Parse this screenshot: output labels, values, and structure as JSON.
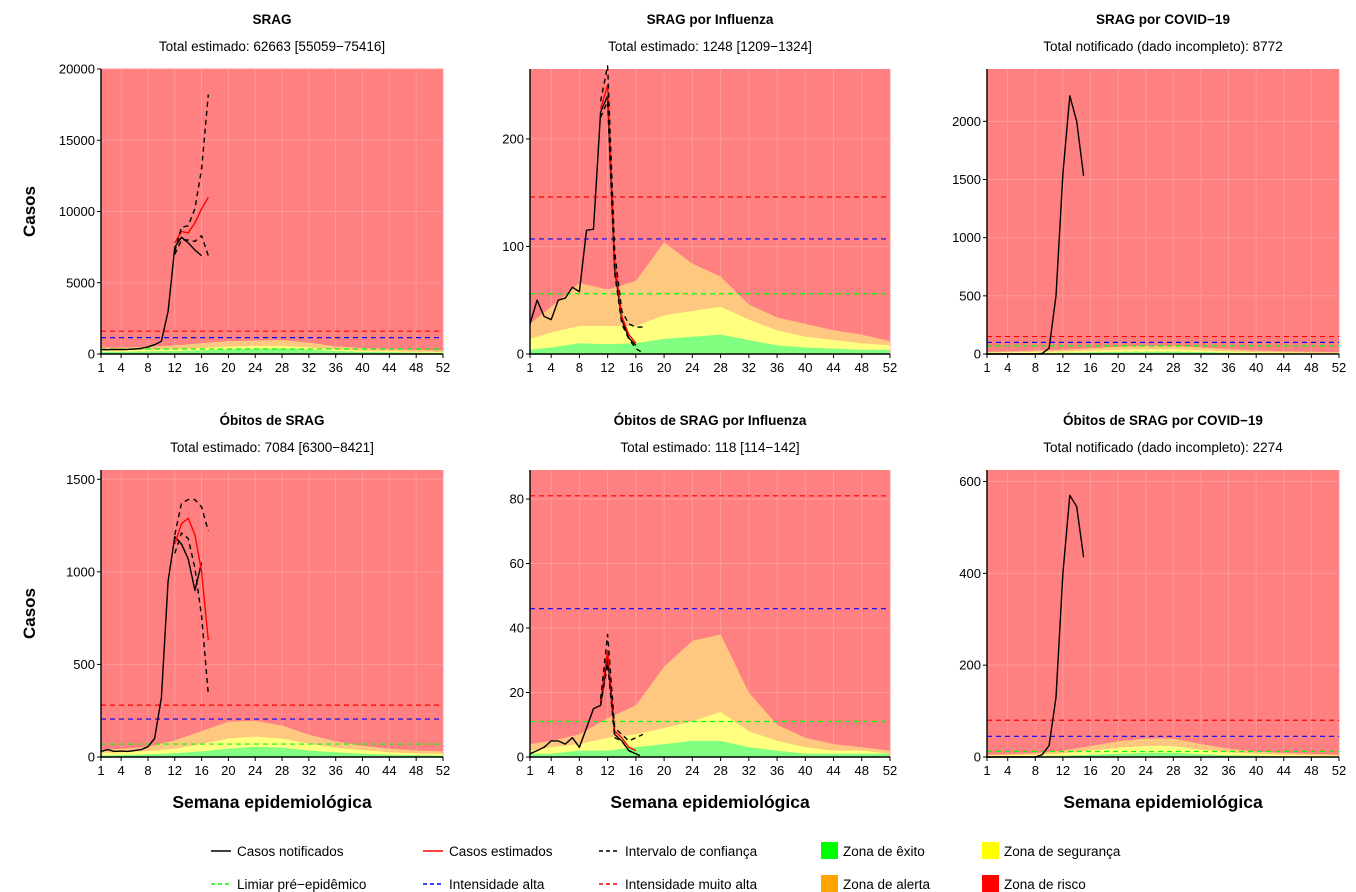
{
  "figure": {
    "x_label": "Semana epidemiológica",
    "y_label": "Casos",
    "colors": {
      "zone_risco": "#ff8080",
      "zone_alerta": "#ffc880",
      "zone_seguranca": "#ffff80",
      "zone_exito": "#80ff80",
      "grid": "#ff9999",
      "casos_notificados": "#000000",
      "casos_estimados": "#ff0000",
      "limiar": "#00ff00",
      "intensidade_alta": "#0000ff",
      "intensidade_muito_alta": "#ff0000"
    },
    "legend": {
      "casos_notificados": "Casos notificados",
      "casos_estimados": "Casos estimados",
      "intervalo_confianca": "Intervalo de confiança",
      "zona_exito": "Zona de êxito",
      "zona_seguranca": "Zona de segurança",
      "limiar": "Limiar pré−epidêmico",
      "intensidade_alta": "Intensidade alta",
      "intensidade_muito_alta": "Intensidade muito alta",
      "zona_alerta": "Zona de alerta",
      "zona_risco": "Zona de risco",
      "colors": {
        "exito": "#00ff00",
        "seguranca": "#ffff00",
        "alerta": "#ffa500",
        "risco": "#ff0000"
      }
    }
  },
  "chart_data": [
    {
      "type": "line",
      "title": "SRAG",
      "subtitle": "Total estimado: 62663 [55059−75416]",
      "ylim": [
        0,
        20000
      ],
      "yticks": [
        0,
        5000,
        10000,
        15000,
        20000
      ],
      "xlim": [
        1,
        52
      ],
      "xticks": [
        1,
        4,
        8,
        12,
        16,
        20,
        24,
        28,
        32,
        36,
        40,
        44,
        48,
        52
      ],
      "thresholds": {
        "limiar": 350,
        "alta": 1150,
        "muito_alta": 1600
      },
      "zones": {
        "weeks": [
          1,
          4,
          8,
          12,
          16,
          20,
          24,
          28,
          32,
          36,
          40,
          44,
          48,
          52
        ],
        "exito": [
          150,
          150,
          180,
          200,
          260,
          320,
          360,
          380,
          300,
          200,
          150,
          120,
          100,
          80
        ],
        "seguranca": [
          250,
          250,
          300,
          340,
          420,
          520,
          560,
          580,
          460,
          320,
          240,
          200,
          160,
          140
        ],
        "alerta": [
          450,
          450,
          520,
          600,
          750,
          900,
          950,
          980,
          800,
          550,
          420,
          350,
          280,
          250
        ]
      },
      "series": [
        {
          "name": "Casos notificados",
          "style": "notificados",
          "x": [
            1,
            2,
            3,
            4,
            5,
            6,
            7,
            8,
            9,
            10,
            11,
            12,
            13,
            14,
            15,
            16
          ],
          "y": [
            300,
            300,
            320,
            310,
            320,
            350,
            400,
            500,
            650,
            900,
            3000,
            7500,
            8200,
            7800,
            7300,
            6900
          ]
        },
        {
          "name": "Casos estimados",
          "style": "estimados",
          "x": [
            12,
            13,
            14,
            15,
            16,
            17
          ],
          "y": [
            7800,
            8600,
            8500,
            9200,
            10200,
            11000
          ]
        },
        {
          "name": "Intervalo de confiança",
          "style": "ic",
          "x": [
            12,
            13,
            14,
            15,
            16,
            17
          ],
          "y": [
            7200,
            8900,
            9000,
            10200,
            13000,
            18200
          ]
        },
        {
          "name": "Intervalo de confiança",
          "style": "ic",
          "x": [
            12,
            13,
            14,
            15,
            16,
            17
          ],
          "y": [
            7000,
            8000,
            8000,
            7900,
            8300,
            6900
          ]
        }
      ]
    },
    {
      "type": "line",
      "title": "SRAG por Influenza",
      "subtitle": "Total estimado: 1248 [1209−1324]",
      "ylim": [
        0,
        265
      ],
      "yticks": [
        0,
        100,
        200
      ],
      "xlim": [
        1,
        52
      ],
      "xticks": [
        1,
        4,
        8,
        12,
        16,
        20,
        24,
        28,
        32,
        36,
        40,
        44,
        48,
        52
      ],
      "thresholds": {
        "limiar": 56,
        "alta": 107,
        "muito_alta": 146
      },
      "zones": {
        "weeks": [
          1,
          4,
          8,
          12,
          16,
          20,
          24,
          28,
          32,
          36,
          40,
          44,
          48,
          52
        ],
        "exito": [
          4,
          6,
          10,
          9,
          10,
          14,
          16,
          18,
          13,
          8,
          6,
          5,
          4,
          4
        ],
        "seguranca": [
          14,
          20,
          26,
          26,
          26,
          36,
          40,
          44,
          32,
          22,
          16,
          13,
          10,
          8
        ],
        "alerta": [
          28,
          44,
          66,
          60,
          68,
          104,
          84,
          72,
          46,
          34,
          28,
          22,
          18,
          12
        ]
      },
      "series": [
        {
          "name": "Casos notificados",
          "style": "notificados",
          "x": [
            1,
            2,
            3,
            4,
            5,
            6,
            7,
            8,
            9,
            10,
            11,
            12,
            13,
            14,
            15,
            16
          ],
          "y": [
            28,
            50,
            35,
            32,
            50,
            52,
            62,
            58,
            115,
            116,
            225,
            240,
            80,
            32,
            15,
            8
          ]
        },
        {
          "name": "Casos estimados",
          "style": "estimados",
          "x": [
            11,
            12,
            13,
            14,
            15,
            16
          ],
          "y": [
            228,
            250,
            85,
            35,
            18,
            10
          ]
        },
        {
          "name": "Intervalo de confiança",
          "style": "ic",
          "x": [
            11,
            12,
            13,
            14,
            15,
            16,
            17
          ],
          "y": [
            235,
            268,
            95,
            40,
            28,
            25,
            25
          ]
        },
        {
          "name": "Intervalo de confiança",
          "style": "ic",
          "x": [
            11,
            12,
            13,
            14,
            15,
            16,
            17
          ],
          "y": [
            220,
            235,
            75,
            28,
            14,
            5,
            1
          ]
        }
      ]
    },
    {
      "type": "line",
      "title": "SRAG por COVID−19",
      "subtitle": "Total notificado (dado incompleto): 8772",
      "ylim": [
        0,
        2450
      ],
      "yticks": [
        0,
        500,
        1000,
        1500,
        2000
      ],
      "xlim": [
        1,
        52
      ],
      "xticks": [
        1,
        4,
        8,
        12,
        16,
        20,
        24,
        28,
        32,
        36,
        40,
        44,
        48,
        52
      ],
      "thresholds": {
        "limiar": 70,
        "alta": 100,
        "muito_alta": 150
      },
      "zones": {
        "weeks": [
          1,
          4,
          8,
          12,
          16,
          20,
          24,
          28,
          32,
          36,
          40,
          44,
          48,
          52
        ],
        "exito": [
          5,
          5,
          8,
          10,
          14,
          18,
          20,
          20,
          16,
          10,
          8,
          6,
          5,
          4
        ],
        "seguranca": [
          12,
          14,
          18,
          22,
          30,
          36,
          40,
          40,
          32,
          22,
          16,
          13,
          10,
          8
        ],
        "alerta": [
          20,
          22,
          30,
          36,
          50,
          62,
          70,
          70,
          56,
          40,
          30,
          24,
          20,
          16
        ]
      },
      "series": [
        {
          "name": "Casos notificados",
          "style": "notificados",
          "x": [
            1,
            2,
            3,
            4,
            5,
            6,
            7,
            8,
            9,
            10,
            11,
            12,
            13,
            14,
            15
          ],
          "y": [
            0,
            0,
            0,
            0,
            0,
            0,
            0,
            0,
            5,
            50,
            500,
            1550,
            2220,
            2000,
            1530
          ]
        }
      ]
    },
    {
      "type": "line",
      "title": "Óbitos de SRAG",
      "subtitle": "Total estimado: 7084 [6300−8421]",
      "ylim": [
        0,
        1550
      ],
      "yticks": [
        0,
        500,
        1000,
        1500
      ],
      "xlim": [
        1,
        52
      ],
      "xticks": [
        1,
        4,
        8,
        12,
        16,
        20,
        24,
        28,
        32,
        36,
        40,
        44,
        48,
        52
      ],
      "thresholds": {
        "limiar": 70,
        "alta": 205,
        "muito_alta": 280
      },
      "zones": {
        "weeks": [
          1,
          4,
          8,
          12,
          16,
          20,
          24,
          28,
          32,
          36,
          40,
          44,
          48,
          52
        ],
        "exito": [
          8,
          10,
          14,
          20,
          30,
          45,
          55,
          50,
          35,
          25,
          18,
          12,
          10,
          8
        ],
        "seguranca": [
          22,
          26,
          32,
          45,
          70,
          100,
          110,
          100,
          72,
          50,
          36,
          26,
          20,
          16
        ],
        "alerta": [
          40,
          44,
          55,
          90,
          140,
          190,
          195,
          170,
          120,
          85,
          60,
          45,
          35,
          30
        ]
      },
      "series": [
        {
          "name": "Casos notificados",
          "style": "notificados",
          "x": [
            1,
            2,
            3,
            4,
            5,
            6,
            7,
            8,
            9,
            10,
            11,
            12,
            13,
            14,
            15,
            16
          ],
          "y": [
            30,
            40,
            30,
            32,
            30,
            35,
            40,
            55,
            100,
            320,
            950,
            1190,
            1150,
            1070,
            900,
            1050
          ]
        },
        {
          "name": "Casos estimados",
          "style": "estimados",
          "x": [
            12,
            13,
            14,
            15,
            16,
            17
          ],
          "y": [
            1150,
            1260,
            1290,
            1200,
            1000,
            630
          ]
        },
        {
          "name": "Intervalo de confiança",
          "style": "ic",
          "x": [
            12,
            13,
            14,
            15,
            16,
            17
          ],
          "y": [
            1200,
            1370,
            1390,
            1390,
            1350,
            1220
          ]
        },
        {
          "name": "Intervalo de confiança",
          "style": "ic",
          "x": [
            12,
            13,
            14,
            15,
            16,
            17
          ],
          "y": [
            1100,
            1210,
            1180,
            1020,
            760,
            340
          ]
        }
      ]
    },
    {
      "type": "line",
      "title": "Óbitos de SRAG por Influenza",
      "subtitle": "Total estimado: 118 [114−142]",
      "ylim": [
        0,
        89
      ],
      "yticks": [
        0,
        20,
        40,
        60,
        80
      ],
      "xlim": [
        1,
        52
      ],
      "xticks": [
        1,
        4,
        8,
        12,
        16,
        20,
        24,
        28,
        32,
        36,
        40,
        44,
        48,
        52
      ],
      "thresholds": {
        "limiar": 11,
        "alta": 46,
        "muito_alta": 81
      },
      "zones": {
        "weeks": [
          1,
          4,
          8,
          12,
          16,
          20,
          24,
          28,
          32,
          36,
          40,
          44,
          48,
          52
        ],
        "exito": [
          1,
          1,
          2,
          2,
          3,
          4,
          5,
          5,
          3,
          2,
          1,
          1,
          1,
          1
        ],
        "seguranca": [
          2,
          3,
          4,
          6,
          7,
          9,
          11,
          14,
          8,
          5,
          3,
          2,
          2,
          1
        ],
        "alerta": [
          4,
          5,
          7,
          12,
          16,
          28,
          36,
          38,
          20,
          10,
          6,
          4,
          3,
          2
        ]
      },
      "series": [
        {
          "name": "Casos notificados",
          "style": "notificados",
          "x": [
            1,
            2,
            3,
            4,
            5,
            6,
            7,
            8,
            9,
            10,
            11,
            12,
            13,
            14,
            15,
            16
          ],
          "y": [
            1,
            2,
            3,
            5,
            5,
            4,
            6,
            3,
            9,
            15,
            16,
            31,
            7,
            5,
            2,
            1
          ]
        },
        {
          "name": "Casos estimados",
          "style": "estimados",
          "x": [
            11,
            12,
            13,
            14,
            15,
            16
          ],
          "y": [
            17,
            33,
            8,
            6,
            3,
            2
          ]
        },
        {
          "name": "Intervalo de confiança",
          "style": "ic",
          "x": [
            11,
            12,
            13,
            14,
            15,
            16,
            17
          ],
          "y": [
            18,
            38,
            9,
            7,
            5,
            6,
            7
          ]
        },
        {
          "name": "Intervalo de confiança",
          "style": "ic",
          "x": [
            11,
            12,
            13,
            14,
            15,
            16,
            17
          ],
          "y": [
            16,
            29,
            6,
            5,
            2,
            1,
            0
          ]
        }
      ]
    },
    {
      "type": "line",
      "title": "Óbitos de SRAG por COVID−19",
      "subtitle": "Total notificado (dado incompleto): 2274",
      "ylim": [
        0,
        625
      ],
      "yticks": [
        0,
        200,
        400,
        600
      ],
      "xlim": [
        1,
        52
      ],
      "xticks": [
        1,
        4,
        8,
        12,
        16,
        20,
        24,
        28,
        32,
        36,
        40,
        44,
        48,
        52
      ],
      "thresholds": {
        "limiar": 12,
        "alta": 45,
        "muito_alta": 80
      },
      "zones": {
        "weeks": [
          1,
          4,
          8,
          12,
          16,
          20,
          24,
          28,
          32,
          36,
          40,
          44,
          48,
          52
        ],
        "exito": [
          1,
          1,
          2,
          3,
          5,
          7,
          9,
          9,
          6,
          4,
          3,
          2,
          1,
          1
        ],
        "seguranca": [
          3,
          4,
          5,
          8,
          14,
          20,
          24,
          24,
          16,
          10,
          7,
          5,
          4,
          3
        ],
        "alerta": [
          5,
          6,
          8,
          14,
          24,
          34,
          40,
          40,
          28,
          18,
          12,
          9,
          7,
          5
        ]
      },
      "series": [
        {
          "name": "Casos notificados",
          "style": "notificados",
          "x": [
            1,
            2,
            3,
            4,
            5,
            6,
            7,
            8,
            9,
            10,
            11,
            12,
            13,
            14,
            15
          ],
          "y": [
            0,
            0,
            0,
            0,
            0,
            0,
            0,
            0,
            5,
            25,
            130,
            400,
            570,
            545,
            435
          ]
        }
      ]
    }
  ]
}
